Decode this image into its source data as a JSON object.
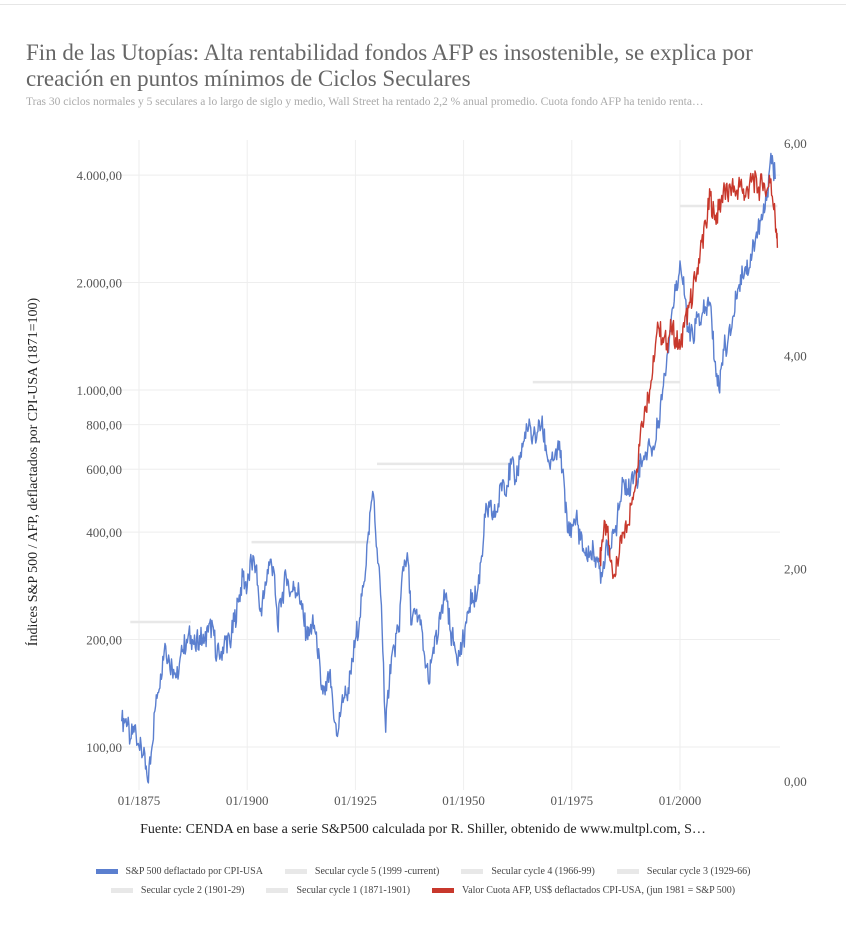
{
  "title": "Fin de las Utopías: Alta rentabilidad fondos AFP es insostenible, se explica por creación en puntos mínimos de Ciclos Seculares",
  "subtitle": "Tras 30 ciclos normales y 5 seculares a lo largo de siglo y medio, Wall Street ha rentado 2,2 % anual promedio. Cuota fondo AFP ha tenido renta…",
  "source": "Fuente: CENDA en base a serie S&P500 calculada por R. Shiller, obtenido de www.multpl.com, S…",
  "chart_data": {
    "type": "line",
    "ylabel": "Índices S&P 500 / AFP, deflactados por CPI-USA (1871=100)",
    "yscale": "log",
    "ylim": [
      80,
      5200
    ],
    "y_ticks": [
      100,
      200,
      400,
      600,
      800,
      1000,
      2000,
      4000
    ],
    "y_tick_labels": [
      "100,00",
      "200,00",
      "400,00",
      "600,00",
      "800,00",
      "1.000,00",
      "2.000,00",
      "4.000,00"
    ],
    "y2lim": [
      0,
      6
    ],
    "y2_ticks": [
      0,
      2,
      4,
      6
    ],
    "y2_tick_labels": [
      "0,00",
      "2,00",
      "4,00",
      "6,00"
    ],
    "xlim": [
      1871,
      2023
    ],
    "x_ticks": [
      1875,
      1900,
      1925,
      1950,
      1975,
      2000
    ],
    "x_tick_labels": [
      "01/1875",
      "01/1900",
      "01/1925",
      "01/1950",
      "01/1975",
      "01/2000"
    ],
    "grid": true,
    "legend_placement": "bottom",
    "series": [
      {
        "name": "S&P 500 deflactado por CPI-USA",
        "color": "#5b7fcf",
        "x": [
          1871,
          1872,
          1873,
          1874,
          1875,
          1876,
          1877,
          1878,
          1879,
          1880,
          1881,
          1882,
          1883,
          1884,
          1885,
          1886,
          1887,
          1888,
          1889,
          1890,
          1891,
          1892,
          1893,
          1894,
          1895,
          1896,
          1897,
          1898,
          1899,
          1900,
          1901,
          1902,
          1903,
          1904,
          1905,
          1906,
          1907,
          1908,
          1909,
          1910,
          1911,
          1912,
          1913,
          1914,
          1915,
          1916,
          1917,
          1918,
          1919,
          1920,
          1921,
          1922,
          1923,
          1924,
          1925,
          1926,
          1927,
          1928,
          1929,
          1930,
          1931,
          1932,
          1933,
          1934,
          1935,
          1936,
          1937,
          1938,
          1939,
          1940,
          1941,
          1942,
          1943,
          1944,
          1945,
          1946,
          1947,
          1948,
          1949,
          1950,
          1951,
          1952,
          1953,
          1954,
          1955,
          1956,
          1957,
          1958,
          1959,
          1960,
          1961,
          1962,
          1963,
          1964,
          1965,
          1966,
          1967,
          1968,
          1969,
          1970,
          1971,
          1972,
          1973,
          1974,
          1975,
          1976,
          1977,
          1978,
          1979,
          1980,
          1981,
          1982,
          1983,
          1984,
          1985,
          1986,
          1987,
          1988,
          1989,
          1990,
          1991,
          1992,
          1993,
          1994,
          1995,
          1996,
          1997,
          1998,
          1999,
          2000,
          2001,
          2002,
          2003,
          2004,
          2005,
          2006,
          2007,
          2008,
          2009,
          2010,
          2011,
          2012,
          2013,
          2014,
          2015,
          2016,
          2017,
          2018,
          2019,
          2020,
          2021,
          2022
        ],
        "values": [
          118,
          120,
          105,
          115,
          100,
          95,
          80,
          100,
          140,
          160,
          195,
          175,
          165,
          155,
          185,
          200,
          205,
          190,
          205,
          195,
          210,
          220,
          180,
          185,
          200,
          195,
          225,
          255,
          300,
          280,
          330,
          320,
          240,
          270,
          330,
          320,
          220,
          260,
          300,
          270,
          280,
          270,
          230,
          200,
          220,
          210,
          150,
          140,
          160,
          120,
          110,
          140,
          140,
          160,
          200,
          230,
          290,
          400,
          520,
          360,
          250,
          110,
          170,
          190,
          210,
          320,
          350,
          220,
          240,
          220,
          180,
          150,
          190,
          200,
          250,
          270,
          210,
          190,
          180,
          200,
          240,
          270,
          260,
          330,
          440,
          470,
          440,
          480,
          560,
          540,
          620,
          560,
          640,
          720,
          780,
          740,
          760,
          800,
          700,
          600,
          640,
          680,
          600,
          400,
          420,
          440,
          380,
          350,
          340,
          360,
          330,
          300,
          380,
          360,
          400,
          470,
          560,
          510,
          590,
          560,
          640,
          670,
          700,
          680,
          820,
          1000,
          1250,
          1600,
          1900,
          2300,
          1850,
          1450,
          1400,
          1600,
          1600,
          1700,
          1750,
          1200,
          1000,
          1300,
          1350,
          1500,
          1800,
          2100,
          2200,
          2200,
          2600,
          2800,
          3000,
          3400,
          4600,
          3900
        ]
      },
      {
        "name": "Valor Cuota AFP, US$ deflactados CPI-USA, (jun 1981 = S&P 500)",
        "color": "#c8382c",
        "x": [
          1981.5,
          1982,
          1983,
          1984,
          1985,
          1986,
          1987,
          1988,
          1989,
          1990,
          1991,
          1992,
          1993,
          1994,
          1995,
          1996,
          1997,
          1998,
          1999,
          2000,
          2001,
          2002,
          2003,
          2004,
          2005,
          2006,
          2007,
          2008,
          2009,
          2010,
          2011,
          2012,
          2013,
          2014,
          2015,
          2016,
          2017,
          2018,
          2019,
          2020,
          2021,
          2022,
          2022.5
        ],
        "values": [
          330,
          380,
          420,
          330,
          300,
          350,
          400,
          420,
          500,
          600,
          800,
          900,
          1000,
          1200,
          1500,
          1400,
          1350,
          1500,
          1400,
          1300,
          1500,
          1700,
          1900,
          2200,
          2600,
          2900,
          3500,
          3000,
          3200,
          3600,
          3500,
          3700,
          3600,
          3800,
          3500,
          3700,
          3900,
          3600,
          3800,
          3600,
          3900,
          3000,
          2500
        ]
      },
      {
        "name": "Secular cycle 5 (1999 -current)",
        "color": "#e8e8e8",
        "x": [
          2000,
          2022.5
        ],
        "values": [
          3276,
          3276
        ]
      },
      {
        "name": "Secular cycle 4 (1966-99)",
        "color": "#e8e8e8",
        "x": [
          1966,
          2000
        ],
        "values": [
          1052,
          1052
        ]
      },
      {
        "name": "Secular cycle 3 (1929-66)",
        "color": "#e8e8e8",
        "x": [
          1930,
          1961
        ],
        "values": [
          621,
          621
        ]
      },
      {
        "name": "Secular cycle 2 (1901-29)",
        "color": "#e8e8e8",
        "x": [
          1901,
          1928.5
        ],
        "values": [
          375,
          375
        ]
      },
      {
        "name": "Secular cycle 1 (1871-1901)",
        "color": "#e8e8e8",
        "x": [
          1873,
          1887
        ],
        "values": [
          224,
          224
        ]
      }
    ],
    "legend_rows": [
      [
        0,
        2,
        3,
        4
      ],
      [
        5,
        6,
        1
      ]
    ]
  }
}
